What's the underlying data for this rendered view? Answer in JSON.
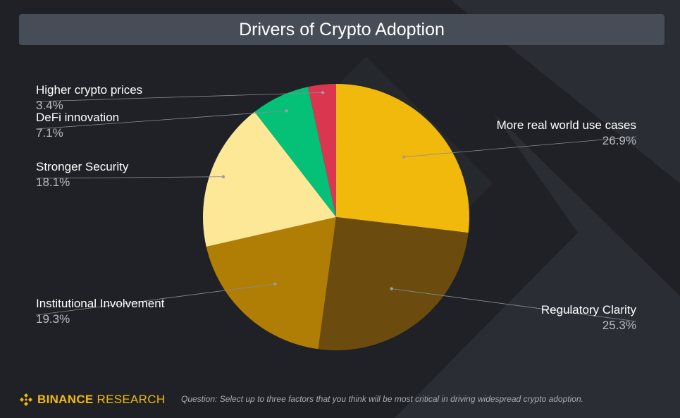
{
  "colors": {
    "background": "#1f2126",
    "title_bar": "#474d57",
    "brand": "#f0b90b"
  },
  "footer": {
    "brand_bold": "BINANCE",
    "brand_light": "RESEARCH",
    "question": "Question: Select up to three factors that you think will be most critical in driving widespread crypto adoption."
  },
  "icons": {
    "logo": "binance-diamond-icon"
  },
  "chart_data": {
    "type": "pie",
    "title": "Drivers of Crypto Adoption",
    "start_angle_deg": 0,
    "direction": "clockwise",
    "legend": "none",
    "slices": [
      {
        "label": "More real world use cases",
        "value": 26.9,
        "display": "26.9%",
        "color": "#f0b90b"
      },
      {
        "label": "Regulatory Clarity",
        "value": 25.3,
        "display": "25.3%",
        "color": "#6b4c0e"
      },
      {
        "label": "Institutional Involvement",
        "value": 19.3,
        "display": "19.3%",
        "color": "#b07e04"
      },
      {
        "label": "Stronger Security",
        "value": 18.1,
        "display": "18.1%",
        "color": "#fce897"
      },
      {
        "label": "DeFi innovation",
        "value": 7.1,
        "display": "7.1%",
        "color": "#05c077"
      },
      {
        "label": "Higher crypto prices",
        "value": 3.4,
        "display": "3.4%",
        "color": "#da3650"
      }
    ]
  }
}
